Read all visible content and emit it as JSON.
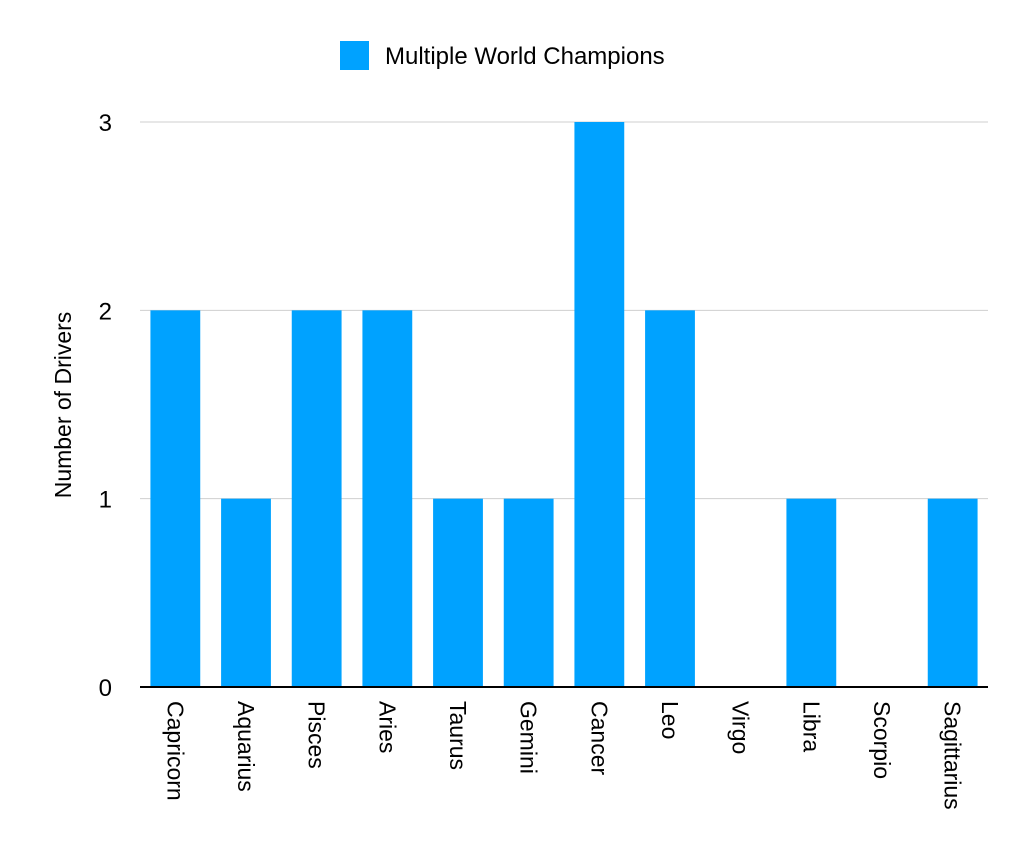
{
  "chart_data": {
    "type": "bar",
    "categories": [
      "Capricorn",
      "Aquarius",
      "Pisces",
      "Aries",
      "Taurus",
      "Gemini",
      "Cancer",
      "Leo",
      "Virgo",
      "Libra",
      "Scorpio",
      "Sagittarius"
    ],
    "series": [
      {
        "name": "Multiple World Champions",
        "values": [
          2,
          1,
          2,
          2,
          1,
          1,
          3,
          2,
          0,
          1,
          0,
          1
        ],
        "color": "#00A2FF"
      }
    ],
    "title": "",
    "xlabel": "",
    "ylabel": "Number of Drivers",
    "ylim": [
      0,
      3
    ],
    "yticks": [
      0,
      1,
      2,
      3
    ],
    "grid": true,
    "legend": "top-center",
    "category_label_orientation": "vertical"
  }
}
